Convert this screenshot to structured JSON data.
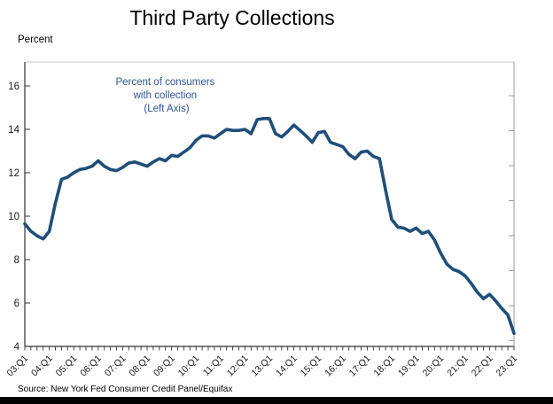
{
  "title": "Third Party Collections",
  "y_axis_unit_label": "Percent",
  "annotation": {
    "line1": "Percent of consumers",
    "line2": "with collection",
    "line3": "(Left Axis)"
  },
  "source": "Source: New York Fed Consumer Credit Panel/Equifax",
  "colors": {
    "line": "#1F4E79",
    "annotation": "#2F5496",
    "axis_dark": "#333333",
    "axis_top": "#C6C6C6",
    "axis_right": "#999999",
    "bottom_bar": "#000000"
  },
  "chart_data": {
    "type": "line",
    "title": "Third Party Collections",
    "xlabel": "",
    "ylabel": "Percent",
    "ylim": [
      4,
      16
    ],
    "ytick_interval": 2,
    "grid": false,
    "legend_position": "none",
    "x_frequency": "quarterly",
    "x_start": "2003:Q1",
    "x_end": "2023:Q1",
    "x_tick_labels": [
      "03:Q1",
      "04:Q1",
      "05:Q1",
      "06:Q1",
      "07:Q1",
      "08:Q1",
      "09:Q1",
      "10:Q1",
      "11:Q1",
      "12:Q1",
      "13:Q1",
      "14:Q1",
      "15:Q1",
      "16:Q1",
      "17:Q1",
      "18:Q1",
      "19:Q1",
      "20:Q1",
      "21:Q1",
      "22:Q1",
      "23:Q1"
    ],
    "series": [
      {
        "name": "Percent of consumers with collection (Left Axis)",
        "values": [
          9.65,
          9.3,
          9.1,
          8.95,
          9.3,
          10.6,
          11.7,
          11.8,
          12.0,
          12.15,
          12.2,
          12.3,
          12.55,
          12.3,
          12.15,
          12.1,
          12.25,
          12.45,
          12.5,
          12.4,
          12.3,
          12.5,
          12.65,
          12.55,
          12.8,
          12.75,
          12.95,
          13.15,
          13.5,
          13.7,
          13.7,
          13.6,
          13.8,
          14.0,
          13.95,
          13.95,
          14.0,
          13.8,
          14.45,
          14.5,
          14.5,
          13.8,
          13.65,
          13.9,
          14.2,
          13.95,
          13.7,
          13.4,
          13.85,
          13.9,
          13.4,
          13.3,
          13.2,
          12.85,
          12.65,
          12.95,
          13.0,
          12.75,
          12.65,
          11.2,
          9.85,
          9.5,
          9.45,
          9.3,
          9.45,
          9.2,
          9.3,
          8.9,
          8.3,
          7.8,
          7.55,
          7.45,
          7.25,
          6.9,
          6.5,
          6.2,
          6.4,
          6.1,
          5.75,
          5.45,
          4.6
        ]
      }
    ]
  }
}
